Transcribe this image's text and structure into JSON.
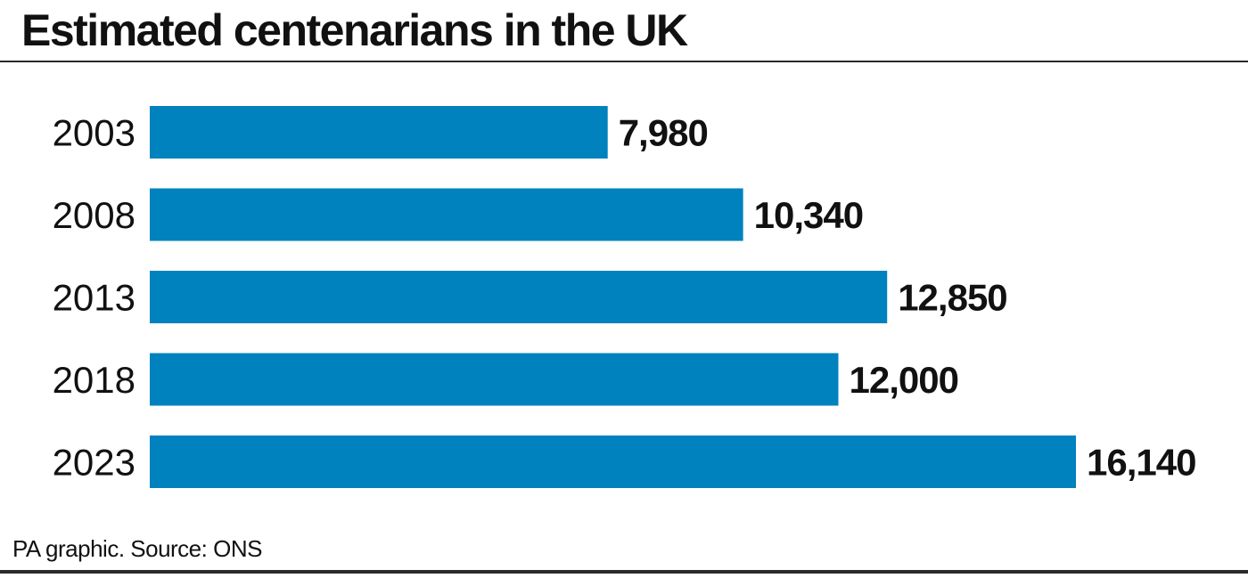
{
  "title": "Estimated centenarians in the UK",
  "source": "PA graphic. Source: ONS",
  "chart_data": {
    "type": "bar",
    "orientation": "horizontal",
    "categories": [
      "2003",
      "2008",
      "2013",
      "2018",
      "2023"
    ],
    "values": [
      7980,
      10340,
      12850,
      12000,
      16140
    ],
    "value_labels": [
      "7,980",
      "10,340",
      "12,850",
      "12,000",
      "16,140"
    ],
    "title": "Estimated centenarians in the UK",
    "xlabel": "",
    "ylabel": "",
    "xlim": [
      0,
      16140
    ],
    "grid": false,
    "legend": "none",
    "bar_color": "#0082be"
  }
}
